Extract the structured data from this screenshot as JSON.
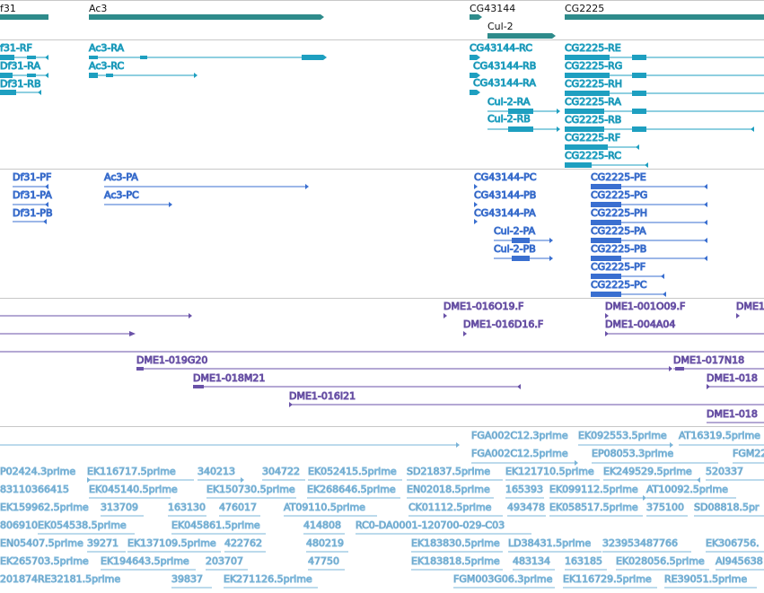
{
  "colors": {
    "gene": "#2e8b8b",
    "transcript_flybase": "#1e9fc0",
    "transcript_refseq": "#3a6fd0",
    "clone": "#6a52a8",
    "est": "#7ab4d8",
    "divider": "#c8c8c8"
  },
  "tracks": {
    "genes": [
      {
        "label": "f31",
        "kind": "bar"
      },
      {
        "label": "Ac3",
        "kind": "bar"
      },
      {
        "label": "CG43144",
        "kind": "bar"
      },
      {
        "label": "CG2225",
        "kind": "bar"
      },
      {
        "label": "Cul-2",
        "kind": "bar"
      }
    ],
    "flybase_transcripts": [
      {
        "label": "f31-RF"
      },
      {
        "label": "Df31-RA"
      },
      {
        "label": "Df31-RB"
      },
      {
        "label": "Ac3-RA"
      },
      {
        "label": "Ac3-RC"
      },
      {
        "label": "CG43144-RC"
      },
      {
        "label": "CG43144-RB"
      },
      {
        "label": "CG43144-RA"
      },
      {
        "label": "Cul-2-RA"
      },
      {
        "label": "Cul-2-RB"
      },
      {
        "label": "CG2225-RE"
      },
      {
        "label": "CG2225-RG"
      },
      {
        "label": "CG2225-RH"
      },
      {
        "label": "CG2225-RA"
      },
      {
        "label": "CG2225-RB"
      },
      {
        "label": "CG2225-RF"
      },
      {
        "label": "CG2225-RC"
      }
    ],
    "refseq_transcripts": [
      {
        "label": "Df31-PF"
      },
      {
        "label": "Df31-PA"
      },
      {
        "label": "Df31-PB"
      },
      {
        "label": "Ac3-PA"
      },
      {
        "label": "Ac3-PC"
      },
      {
        "label": "CG43144-PC"
      },
      {
        "label": "CG43144-PB"
      },
      {
        "label": "CG43144-PA"
      },
      {
        "label": "Cul-2-PA"
      },
      {
        "label": "Cul-2-PB"
      },
      {
        "label": "CG2225-PE"
      },
      {
        "label": "CG2225-PG"
      },
      {
        "label": "CG2225-PH"
      },
      {
        "label": "CG2225-PA"
      },
      {
        "label": "CG2225-PB"
      },
      {
        "label": "CG2225-PF"
      },
      {
        "label": "CG2225-PC"
      }
    ],
    "clones": [
      {
        "label": "DME1-016O19.F"
      },
      {
        "label": "DME1-001O09.F"
      },
      {
        "label": "DME1"
      },
      {
        "label": "DME1-016D16.F"
      },
      {
        "label": "DME1-004A04"
      },
      {
        "label": "DME1-019G20"
      },
      {
        "label": "DME1-017N18"
      },
      {
        "label": "DME1-018M21"
      },
      {
        "label": "DME1-018"
      },
      {
        "label": "DME1-016I21"
      },
      {
        "label": "DME1-018"
      }
    ],
    "ests": [
      {
        "label": "FGA002C12.3prime"
      },
      {
        "label": "EK092553.5prime"
      },
      {
        "label": "AT16319.5prime"
      },
      {
        "label": "FGA002C12.5prime"
      },
      {
        "label": "EP08053.3prime"
      },
      {
        "label": "FGM22"
      },
      {
        "label": "P02424.3prime"
      },
      {
        "label": "EK116717.5prime"
      },
      {
        "label": "340213"
      },
      {
        "label": "304722"
      },
      {
        "label": "EK052415.5prime"
      },
      {
        "label": "SD21837.5prime"
      },
      {
        "label": "EK121710.5prime"
      },
      {
        "label": "EK249529.5prime"
      },
      {
        "label": "520337"
      },
      {
        "label": "83110366415"
      },
      {
        "label": "EK045140.5prime"
      },
      {
        "label": "EK150730.5prime"
      },
      {
        "label": "EK268646.5prime"
      },
      {
        "label": "EN02018.5prime"
      },
      {
        "label": "165393"
      },
      {
        "label": "EK099112.5prime"
      },
      {
        "label": "AT10092.5prime"
      },
      {
        "label": "EK159962.5prime"
      },
      {
        "label": "313709"
      },
      {
        "label": "163130"
      },
      {
        "label": "476017"
      },
      {
        "label": "AT09110.5prime"
      },
      {
        "label": "CK01112.5prime"
      },
      {
        "label": "493478"
      },
      {
        "label": "EK058517.5prime"
      },
      {
        "label": "375100"
      },
      {
        "label": "SD08818.5pr"
      },
      {
        "label": "806910"
      },
      {
        "label": "EK054538.5prime"
      },
      {
        "label": "EK045861.5prime"
      },
      {
        "label": "414808"
      },
      {
        "label": "RC0-DA0001-120700-029-C03"
      },
      {
        "label": "EN05407.5prime"
      },
      {
        "label": "39271"
      },
      {
        "label": "EK137109.5prime"
      },
      {
        "label": "422762"
      },
      {
        "label": "480219"
      },
      {
        "label": "EK183830.5prime"
      },
      {
        "label": "LD38431.5prime"
      },
      {
        "label": "323953487766"
      },
      {
        "label": "EK306756."
      },
      {
        "label": "EK265703.5prime"
      },
      {
        "label": "EK194643.5prime"
      },
      {
        "label": "203707"
      },
      {
        "label": "47750"
      },
      {
        "label": "EK183818.5prime"
      },
      {
        "label": "483134"
      },
      {
        "label": "163185"
      },
      {
        "label": "EK028056.5prime"
      },
      {
        "label": "AI945638"
      },
      {
        "label": "201874RE32181.5prime"
      },
      {
        "label": "39837"
      },
      {
        "label": "EK271126.5prime"
      },
      {
        "label": "FGM003G06.3prime"
      },
      {
        "label": "EK116729.5prime"
      },
      {
        "label": "RE39051.5prime"
      }
    ]
  }
}
